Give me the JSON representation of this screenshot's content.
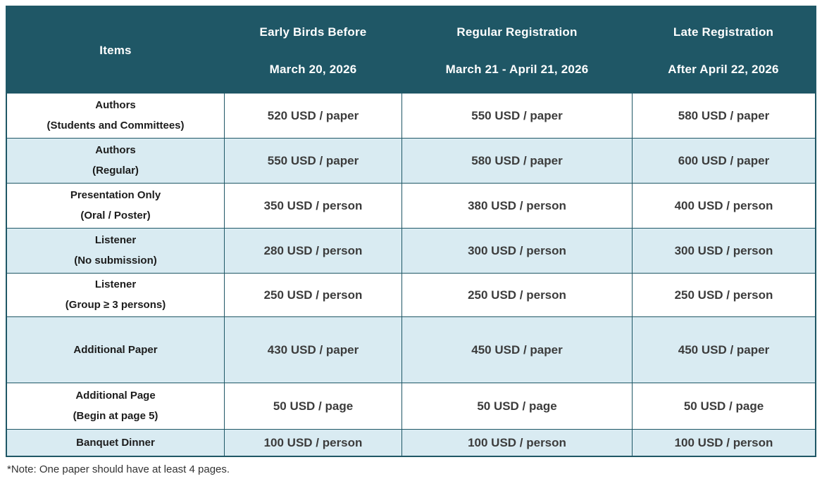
{
  "colors": {
    "header_bg": "#1F5766",
    "alt_row_bg": "#D9EBF2",
    "border": "#1F5766"
  },
  "table": {
    "columns": [
      {
        "line1": "Items",
        "line2": ""
      },
      {
        "line1": "Early Birds Before",
        "line2": "March 20, 2026"
      },
      {
        "line1": "Regular Registration",
        "line2": "March 21 - April 21, 2026"
      },
      {
        "line1": "Late Registration",
        "line2": "After April 22, 2026"
      }
    ],
    "rows": [
      {
        "item1": "Authors",
        "item2": "(Students and Committees)",
        "early": "520 USD / paper",
        "regular": "550 USD / paper",
        "late": "580 USD / paper"
      },
      {
        "item1": "Authors",
        "item2": "(Regular)",
        "early": "550 USD / paper",
        "regular": "580 USD / paper",
        "late": "600 USD / paper"
      },
      {
        "item1": "Presentation Only",
        "item2": "(Oral / Poster)",
        "early": "350 USD / person",
        "regular": "380 USD / person",
        "late": "400 USD / person"
      },
      {
        "item1": "Listener",
        "item2": "(No submission)",
        "early": "280 USD / person",
        "regular": "300 USD / person",
        "late": "300 USD / person"
      },
      {
        "item1": "Listener",
        "item2": "(Group ≥ 3 persons)",
        "early": "250 USD / person",
        "regular": "250 USD / person",
        "late": "250 USD / person"
      },
      {
        "item1": "Additional Paper",
        "item2": "",
        "early": "430 USD / paper",
        "regular": "450 USD / paper",
        "late": "450 USD / paper"
      },
      {
        "item1": "Additional Page",
        "item2": "(Begin at page 5)",
        "early": "50 USD / page",
        "regular": "50 USD / page",
        "late": "50 USD / page"
      },
      {
        "item1": "Banquet Dinner",
        "item2": "",
        "early": "100 USD / person",
        "regular": "100 USD / person",
        "late": "100 USD / person"
      }
    ]
  },
  "note": "*Note: One paper should have at least 4 pages."
}
